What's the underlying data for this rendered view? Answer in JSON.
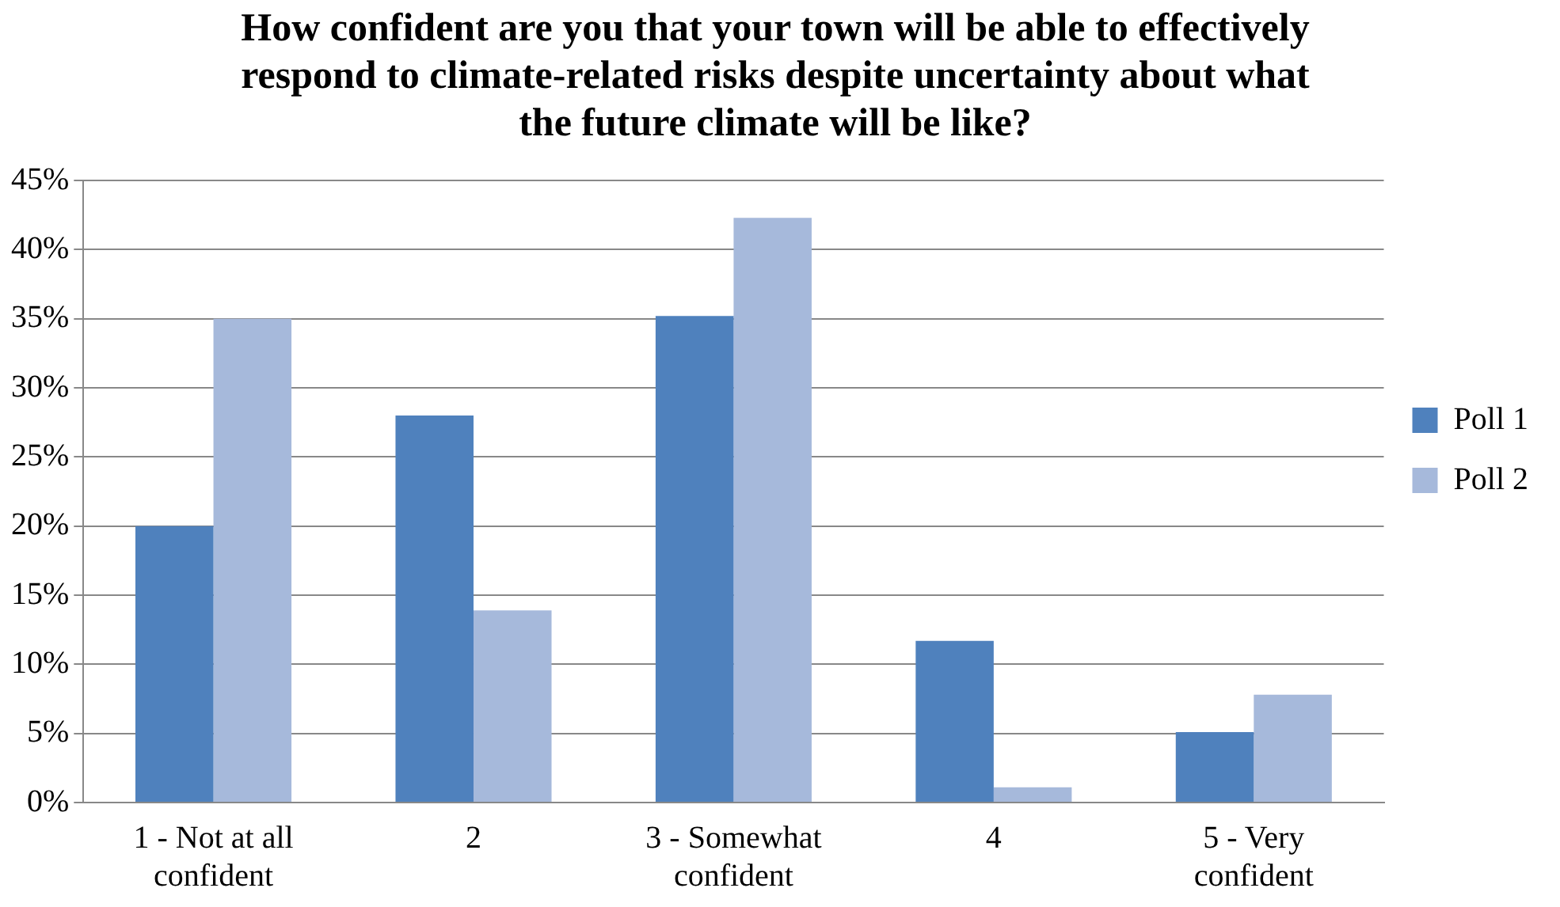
{
  "chart_data": {
    "type": "bar",
    "title": "How confident are you that your town will be able to effectively respond to climate-related risks despite uncertainty about what the future climate will be like?",
    "categories": [
      "1 - Not at all confident",
      "2",
      "3 - Somewhat confident",
      "4",
      "5 - Very confident"
    ],
    "series": [
      {
        "name": "Poll 1",
        "color": "#4f81bd",
        "values": [
          20,
          28,
          35.2,
          11.7,
          5.1
        ]
      },
      {
        "name": "Poll 2",
        "color": "#a6b9db",
        "values": [
          35,
          13.9,
          42.3,
          1.1,
          7.8
        ]
      }
    ],
    "ylim": [
      0,
      45
    ],
    "yticks": [
      {
        "value": 0,
        "label": "0%"
      },
      {
        "value": 5,
        "label": "5%"
      },
      {
        "value": 10,
        "label": "10%"
      },
      {
        "value": 15,
        "label": "15%"
      },
      {
        "value": 20,
        "label": "20%"
      },
      {
        "value": 25,
        "label": "25%"
      },
      {
        "value": 30,
        "label": "30%"
      },
      {
        "value": 35,
        "label": "35%"
      },
      {
        "value": 40,
        "label": "40%"
      },
      {
        "value": 45,
        "label": "45%"
      }
    ],
    "grid": "y",
    "legend": "right"
  }
}
